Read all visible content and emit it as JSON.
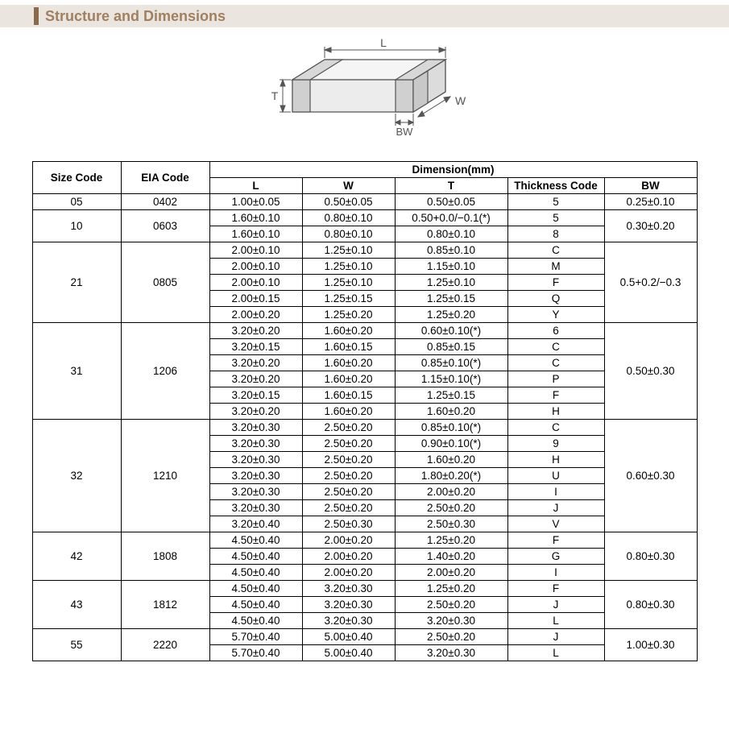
{
  "header": {
    "title": "Structure and Dimensions"
  },
  "diagram": {
    "labels": {
      "L": "L",
      "W": "W",
      "T": "T",
      "BW": "BW"
    },
    "stroke": "#555555",
    "fill_top": "#f2f2f2",
    "fill_side": "#dcdcdc",
    "fill_front": "#e8e8e8",
    "band_fill": "#cfcfcf",
    "text_color": "#555555"
  },
  "table": {
    "header": {
      "size_code": "Size Code",
      "eia_code": "EIA Code",
      "dimension": "Dimension(mm)",
      "L": "L",
      "W": "W",
      "T": "T",
      "thickness_code": "Thickness  Code",
      "BW": "BW"
    },
    "groups": [
      {
        "size": "05",
        "eia": "0402",
        "bw": "0.25±0.10",
        "rows": [
          {
            "L": "1.00±0.05",
            "W": "0.50±0.05",
            "T": "0.50±0.05",
            "TC": "5"
          }
        ]
      },
      {
        "size": "10",
        "eia": "0603",
        "bw": "0.30±0.20",
        "rows": [
          {
            "L": "1.60±0.10",
            "W": "0.80±0.10",
            "T": "0.50+0.0/−0.1(*)",
            "TC": "5"
          },
          {
            "L": "1.60±0.10",
            "W": "0.80±0.10",
            "T": "0.80±0.10",
            "TC": "8"
          }
        ]
      },
      {
        "size": "21",
        "eia": "0805",
        "bw": "0.5+0.2/−0.3",
        "rows": [
          {
            "L": "2.00±0.10",
            "W": "1.25±0.10",
            "T": "0.85±0.10",
            "TC": "C"
          },
          {
            "L": "2.00±0.10",
            "W": "1.25±0.10",
            "T": "1.15±0.10",
            "TC": "M"
          },
          {
            "L": "2.00±0.10",
            "W": "1.25±0.10",
            "T": "1.25±0.10",
            "TC": "F"
          },
          {
            "L": "2.00±0.15",
            "W": "1.25±0.15",
            "T": "1.25±0.15",
            "TC": "Q"
          },
          {
            "L": "2.00±0.20",
            "W": "1.25±0.20",
            "T": "1.25±0.20",
            "TC": "Y"
          }
        ]
      },
      {
        "size": "31",
        "eia": "1206",
        "bw": "0.50±0.30",
        "rows": [
          {
            "L": "3.20±0.20",
            "W": "1.60±0.20",
            "T": "0.60±0.10(*)",
            "TC": "6"
          },
          {
            "L": "3.20±0.15",
            "W": "1.60±0.15",
            "T": "0.85±0.15",
            "TC": "C"
          },
          {
            "L": "3.20±0.20",
            "W": "1.60±0.20",
            "T": "0.85±0.10(*)",
            "TC": "C"
          },
          {
            "L": "3.20±0.20",
            "W": "1.60±0.20",
            "T": "1.15±0.10(*)",
            "TC": "P"
          },
          {
            "L": "3.20±0.15",
            "W": "1.60±0.15",
            "T": "1.25±0.15",
            "TC": "F"
          },
          {
            "L": "3.20±0.20",
            "W": "1.60±0.20",
            "T": "1.60±0.20",
            "TC": "H"
          }
        ]
      },
      {
        "size": "32",
        "eia": "1210",
        "bw": "0.60±0.30",
        "rows": [
          {
            "L": "3.20±0.30",
            "W": "2.50±0.20",
            "T": "0.85±0.10(*)",
            "TC": "C"
          },
          {
            "L": "3.20±0.30",
            "W": "2.50±0.20",
            "T": "0.90±0.10(*)",
            "TC": "9"
          },
          {
            "L": "3.20±0.30",
            "W": "2.50±0.20",
            "T": "1.60±0.20",
            "TC": "H"
          },
          {
            "L": "3.20±0.30",
            "W": "2.50±0.20",
            "T": "1.80±0.20(*)",
            "TC": "U"
          },
          {
            "L": "3.20±0.30",
            "W": "2.50±0.20",
            "T": "2.00±0.20",
            "TC": "I"
          },
          {
            "L": "3.20±0.30",
            "W": "2.50±0.20",
            "T": "2.50±0.20",
            "TC": "J"
          },
          {
            "L": "3.20±0.40",
            "W": "2.50±0.30",
            "T": "2.50±0.30",
            "TC": "V"
          }
        ]
      },
      {
        "size": "42",
        "eia": "1808",
        "bw": "0.80±0.30",
        "rows": [
          {
            "L": "4.50±0.40",
            "W": "2.00±0.20",
            "T": "1.25±0.20",
            "TC": "F"
          },
          {
            "L": "4.50±0.40",
            "W": "2.00±0.20",
            "T": "1.40±0.20",
            "TC": "G"
          },
          {
            "L": "4.50±0.40",
            "W": "2.00±0.20",
            "T": "2.00±0.20",
            "TC": "I"
          }
        ]
      },
      {
        "size": "43",
        "eia": "1812",
        "bw": "0.80±0.30",
        "rows": [
          {
            "L": "4.50±0.40",
            "W": "3.20±0.30",
            "T": "1.25±0.20",
            "TC": "F"
          },
          {
            "L": "4.50±0.40",
            "W": "3.20±0.30",
            "T": "2.50±0.20",
            "TC": "J"
          },
          {
            "L": "4.50±0.40",
            "W": "3.20±0.30",
            "T": "3.20±0.30",
            "TC": "L"
          }
        ]
      },
      {
        "size": "55",
        "eia": "2220",
        "bw": "1.00±0.30",
        "rows": [
          {
            "L": "5.70±0.40",
            "W": "5.00±0.40",
            "T": "2.50±0.20",
            "TC": "J"
          },
          {
            "L": "5.70±0.40",
            "W": "5.00±0.40",
            "T": "3.20±0.30",
            "TC": "L"
          }
        ]
      }
    ]
  }
}
